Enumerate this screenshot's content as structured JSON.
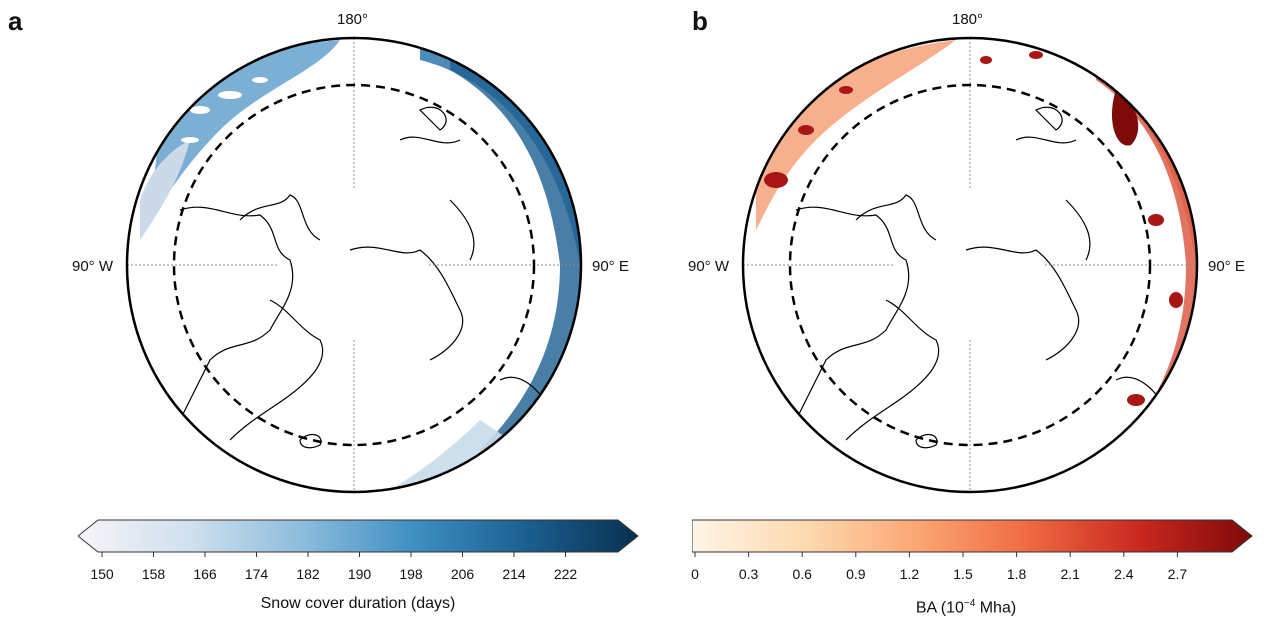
{
  "panels": [
    {
      "letter": "a",
      "lon_top": "180°",
      "lon_left": "90° W",
      "lon_right": "90° E",
      "colorbar": {
        "title": "Snow cover duration (days)",
        "ticks": [
          "150",
          "158",
          "166",
          "174",
          "182",
          "190",
          "198",
          "206",
          "214",
          "222"
        ],
        "range": [
          150,
          230
        ],
        "extend": "both",
        "colors": [
          "#f7f4f9",
          "#cfe0ee",
          "#8dbcdc",
          "#3f8fc2",
          "#1b5f91",
          "#08304f"
        ]
      }
    },
    {
      "letter": "b",
      "lon_top": "180°",
      "lon_left": "90° W",
      "lon_right": "90° E",
      "colorbar": {
        "title_prefix": "BA (10",
        "title_sup": "−4",
        "title_suffix": " Mha)",
        "ticks": [
          "0",
          "0.3",
          "0.6",
          "0.9",
          "1.2",
          "1.5",
          "1.8",
          "2.1",
          "2.4",
          "2.7"
        ],
        "range": [
          0,
          3.0
        ],
        "extend": "max",
        "colors": [
          "#fff5e6",
          "#fddab0",
          "#fba775",
          "#ef6a43",
          "#c9271f",
          "#7f0a0a"
        ]
      }
    }
  ]
}
